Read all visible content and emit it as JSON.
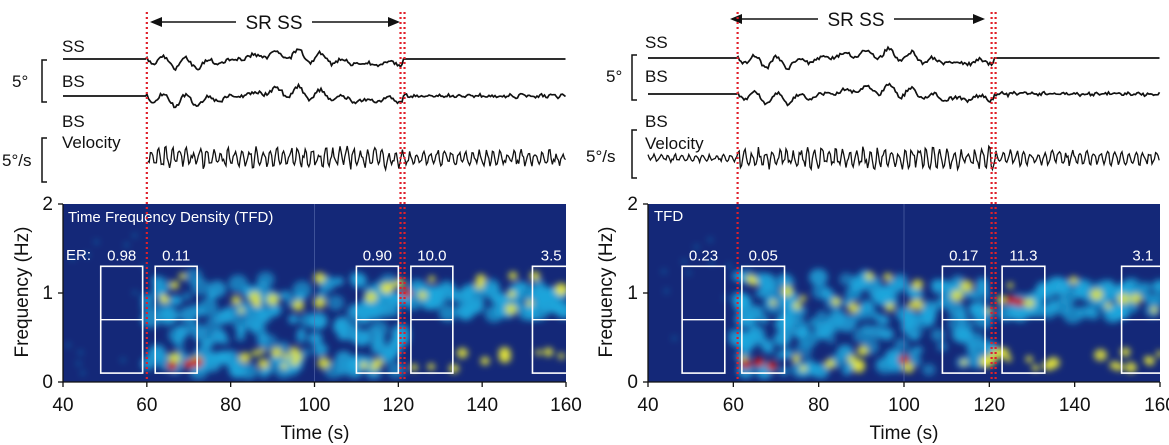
{
  "chart_data": [
    {
      "type": "line",
      "panel": "left",
      "sr_label": "SR SS",
      "sr_interval": [
        60,
        121
      ],
      "trace_labels": [
        "SS",
        "BS",
        "BS",
        "Velocity"
      ],
      "scale_labels": [
        "5°",
        "5°/s"
      ],
      "heatmap": {
        "type": "heatmap",
        "title": "Time Frequency Density (TFD)",
        "er_label": "ER:",
        "xlabel": "Time (s)",
        "ylabel": "Frequency (Hz)",
        "xlim": [
          40,
          160
        ],
        "ylim": [
          0,
          2
        ],
        "xticks": [
          "40",
          "60",
          "80",
          "100",
          "120",
          "140",
          "160"
        ],
        "yticks": [
          "0",
          "1",
          "2"
        ],
        "windows": [
          {
            "t0": 49,
            "t1": 59,
            "f0": 0.1,
            "f1": 1.3,
            "label": "0.98"
          },
          {
            "t0": 62,
            "t1": 72,
            "f0": 0.1,
            "f1": 1.3,
            "label": "0.11"
          },
          {
            "t0": 110,
            "t1": 120,
            "f0": 0.1,
            "f1": 1.3,
            "label": "0.90"
          },
          {
            "t0": 123,
            "t1": 133,
            "f0": 0.1,
            "f1": 1.3,
            "label": "10.0"
          },
          {
            "t0": 152,
            "t1": 162,
            "f0": 0.1,
            "f1": 1.3,
            "label": "3.5"
          }
        ],
        "window_midline": 0.7
      }
    },
    {
      "type": "line",
      "panel": "right",
      "sr_label": "SR SS",
      "sr_interval": [
        61,
        121
      ],
      "trace_labels": [
        "SS",
        "BS",
        "BS",
        "Velocity"
      ],
      "scale_labels": [
        "5°",
        "5°/s"
      ],
      "heatmap": {
        "type": "heatmap",
        "title": "TFD",
        "er_label": "",
        "xlabel": "Time (s)",
        "ylabel": "Frequency (Hz)",
        "xlim": [
          40,
          160
        ],
        "ylim": [
          0,
          2
        ],
        "xticks": [
          "40",
          "60",
          "80",
          "100",
          "120",
          "140",
          "160"
        ],
        "yticks": [
          "0",
          "1",
          "2"
        ],
        "windows": [
          {
            "t0": 48,
            "t1": 58,
            "f0": 0.1,
            "f1": 1.3,
            "label": "0.23"
          },
          {
            "t0": 62,
            "t1": 72,
            "f0": 0.1,
            "f1": 1.3,
            "label": "0.05"
          },
          {
            "t0": 109,
            "t1": 119,
            "f0": 0.1,
            "f1": 1.3,
            "label": "0.17"
          },
          {
            "t0": 123,
            "t1": 133,
            "f0": 0.1,
            "f1": 1.3,
            "label": "11.3"
          },
          {
            "t0": 151,
            "t1": 161,
            "f0": 0.1,
            "f1": 1.3,
            "label": "3.1"
          }
        ],
        "window_midline": 0.7
      }
    }
  ],
  "colors": {
    "heat_background": "#142878",
    "heat_cyan": "#1fa6dc",
    "heat_yellow": "#e8e83a",
    "heat_red": "#c4141a",
    "marker_red": "#e0202a",
    "window_box": "#ffffff",
    "trace": "#111111"
  }
}
